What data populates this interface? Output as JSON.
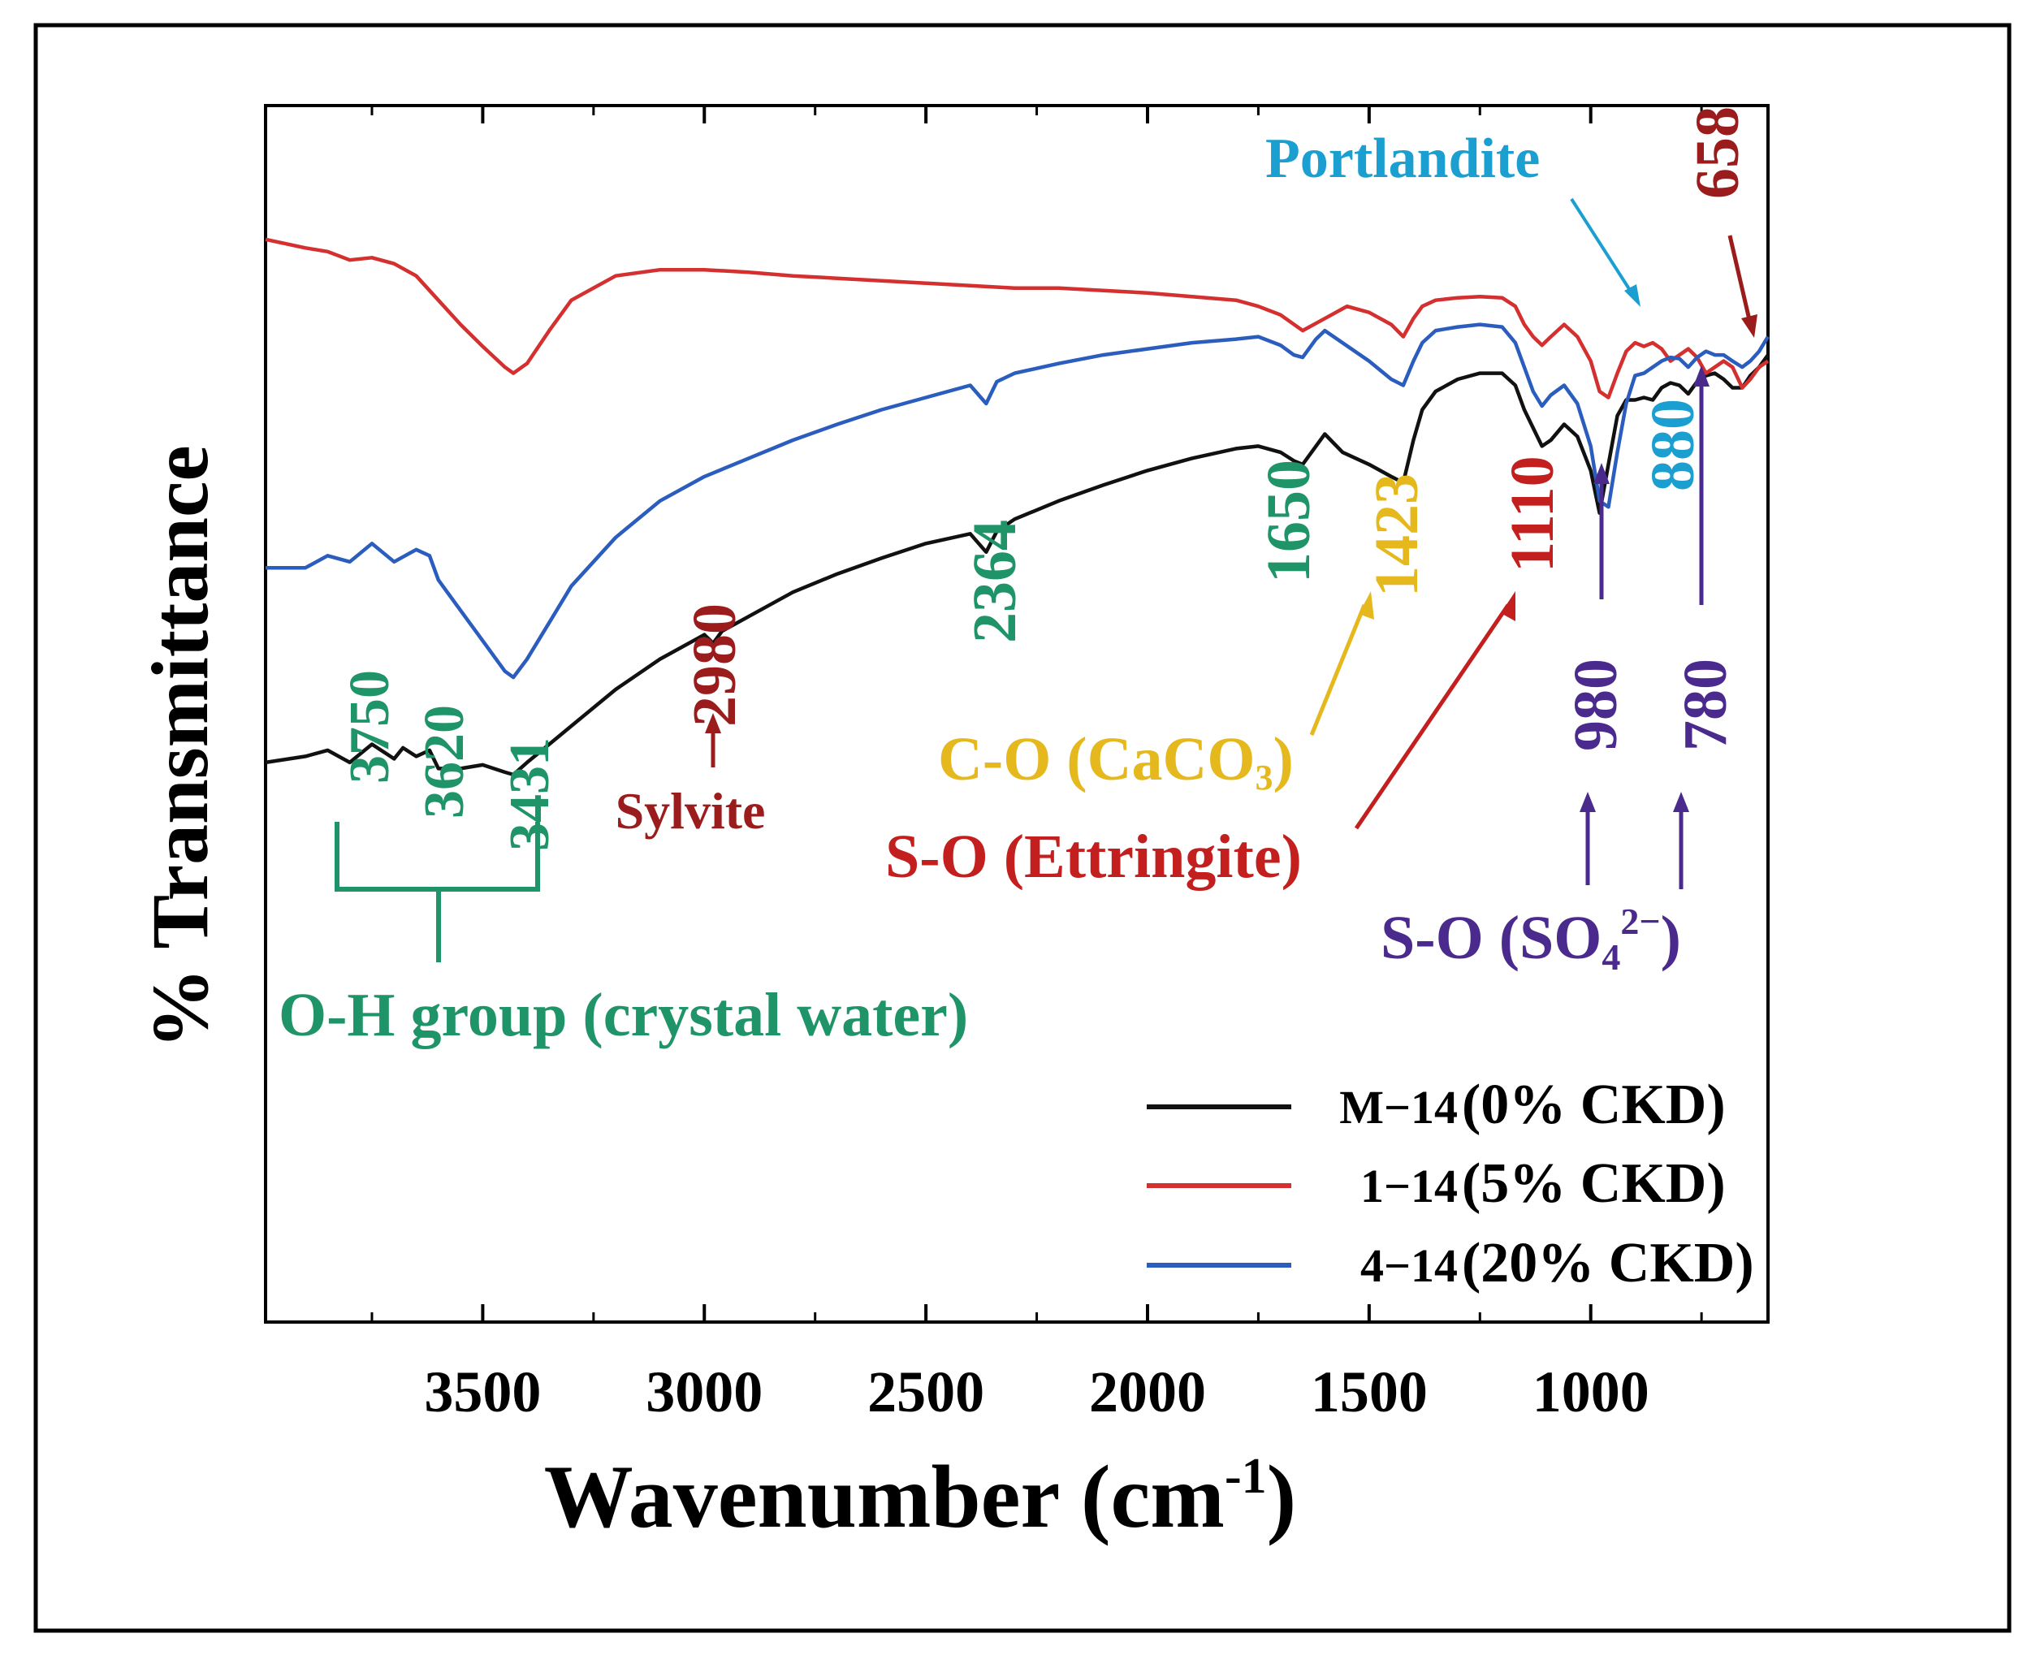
{
  "chart_data": {
    "type": "line",
    "title": "",
    "xlabel": "Wavenumber (cm",
    "xlabel_sup": "-1",
    "xlabel_close": ")",
    "ylabel": "% Transmittance",
    "xlim": [
      3990,
      600
    ],
    "x_reversed": true,
    "xticks": [
      3500,
      3000,
      2500,
      2000,
      1500,
      1000
    ],
    "xtick_labels": [
      "3500",
      "3000",
      "2500",
      "2000",
      "1500",
      "1000"
    ],
    "minor_xticks": [
      3750,
      3250,
      2750,
      2250,
      1750,
      1250,
      750
    ],
    "yticks_shown": false,
    "grid": false,
    "legend_position": "bottom-right",
    "series": [
      {
        "name": "M-14",
        "legend_id": "M−14",
        "legend_note": "(0% CKD)",
        "color": "#111111",
        "x": [
          3990,
          3900,
          3850,
          3800,
          3750,
          3700,
          3680,
          3650,
          3620,
          3600,
          3550,
          3500,
          3450,
          3431,
          3400,
          3350,
          3300,
          3200,
          3100,
          3000,
          2980,
          2960,
          2900,
          2800,
          2700,
          2600,
          2500,
          2400,
          2364,
          2340,
          2300,
          2200,
          2100,
          2000,
          1900,
          1800,
          1750,
          1700,
          1670,
          1650,
          1620,
          1600,
          1560,
          1500,
          1450,
          1423,
          1400,
          1380,
          1350,
          1300,
          1250,
          1200,
          1170,
          1150,
          1130,
          1110,
          1090,
          1060,
          1030,
          1000,
          980,
          960,
          940,
          920,
          900,
          880,
          860,
          840,
          820,
          800,
          780,
          760,
          740,
          720,
          700,
          680,
          658,
          640,
          620,
          600
        ],
        "y": [
          46.0,
          46.5,
          47.0,
          46.0,
          47.5,
          46.3,
          47.2,
          46.5,
          47.0,
          45.5,
          45.5,
          45.8,
          45.2,
          45.0,
          46.0,
          47.5,
          49.0,
          52.0,
          54.5,
          56.5,
          55.8,
          56.8,
          58.0,
          60.0,
          61.5,
          62.8,
          64.0,
          64.8,
          63.3,
          65.0,
          66.0,
          67.5,
          68.8,
          70.0,
          71.0,
          71.8,
          72.0,
          71.5,
          70.8,
          70.5,
          72.0,
          73.0,
          71.5,
          70.5,
          69.5,
          69.0,
          72.5,
          75.0,
          76.5,
          77.5,
          78.0,
          78.0,
          77.0,
          75.0,
          73.5,
          72.0,
          72.5,
          73.8,
          72.8,
          70.0,
          66.5,
          70.5,
          74.5,
          75.8,
          75.8,
          76.0,
          75.8,
          76.8,
          77.2,
          77.0,
          76.3,
          77.3,
          77.8,
          78.0,
          77.5,
          76.8,
          76.8,
          77.8,
          78.5,
          79.5
        ]
      },
      {
        "name": "1-14",
        "legend_id": "1−14",
        "legend_note": "(5% CKD)",
        "color": "#d43030",
        "x": [
          3990,
          3900,
          3850,
          3800,
          3750,
          3700,
          3650,
          3600,
          3550,
          3500,
          3450,
          3431,
          3400,
          3350,
          3300,
          3200,
          3100,
          3000,
          2900,
          2800,
          2700,
          2600,
          2500,
          2400,
          2300,
          2200,
          2100,
          2000,
          1900,
          1800,
          1750,
          1700,
          1650,
          1600,
          1550,
          1500,
          1450,
          1423,
          1400,
          1380,
          1350,
          1300,
          1250,
          1200,
          1170,
          1150,
          1130,
          1110,
          1090,
          1060,
          1030,
          1000,
          980,
          960,
          940,
          920,
          900,
          880,
          860,
          840,
          820,
          800,
          780,
          760,
          740,
          720,
          700,
          680,
          658,
          640,
          620,
          600
        ],
        "y": [
          89.0,
          88.3,
          88.0,
          87.3,
          87.5,
          87.0,
          86.0,
          84.0,
          82.0,
          80.2,
          78.5,
          78.0,
          78.8,
          81.5,
          84.0,
          86.0,
          86.5,
          86.5,
          86.3,
          86.0,
          85.8,
          85.6,
          85.4,
          85.2,
          85.0,
          85.0,
          84.8,
          84.6,
          84.3,
          84.0,
          83.5,
          82.8,
          81.5,
          82.5,
          83.5,
          83.0,
          82.0,
          81.0,
          82.5,
          83.5,
          84.0,
          84.2,
          84.3,
          84.2,
          83.5,
          82.0,
          81.0,
          80.3,
          81.0,
          82.0,
          81.0,
          79.0,
          76.5,
          76.0,
          78.0,
          79.8,
          80.5,
          80.2,
          80.5,
          80.0,
          79.0,
          79.5,
          80.0,
          79.3,
          78.0,
          78.5,
          79.0,
          78.5,
          76.8,
          77.5,
          78.5,
          79.0
        ]
      },
      {
        "name": "4-14",
        "legend_id": "4−14",
        "legend_note": "(20% CKD)",
        "color": "#2a5dbd",
        "x": [
          3990,
          3900,
          3850,
          3800,
          3750,
          3700,
          3650,
          3620,
          3600,
          3550,
          3500,
          3450,
          3431,
          3400,
          3350,
          3300,
          3200,
          3100,
          3000,
          2900,
          2800,
          2700,
          2600,
          2500,
          2400,
          2364,
          2340,
          2300,
          2200,
          2100,
          2000,
          1900,
          1800,
          1750,
          1700,
          1670,
          1650,
          1620,
          1600,
          1560,
          1500,
          1450,
          1423,
          1400,
          1380,
          1350,
          1300,
          1250,
          1200,
          1170,
          1150,
          1130,
          1110,
          1090,
          1060,
          1030,
          1000,
          980,
          960,
          940,
          920,
          900,
          880,
          860,
          840,
          820,
          800,
          780,
          760,
          740,
          720,
          700,
          680,
          658,
          640,
          620,
          600
        ],
        "y": [
          62.0,
          62.0,
          63.0,
          62.5,
          64.0,
          62.5,
          63.5,
          63.0,
          61.0,
          58.5,
          56.0,
          53.5,
          53.0,
          54.5,
          57.5,
          60.5,
          64.5,
          67.5,
          69.5,
          71.0,
          72.5,
          73.8,
          75.0,
          76.0,
          77.0,
          75.5,
          77.3,
          78.0,
          78.8,
          79.5,
          80.0,
          80.5,
          80.8,
          81.0,
          80.3,
          79.5,
          79.3,
          80.8,
          81.5,
          80.5,
          79.0,
          77.5,
          77.0,
          79.0,
          80.5,
          81.5,
          81.8,
          82.0,
          81.8,
          80.5,
          78.5,
          76.5,
          75.3,
          76.2,
          77.0,
          75.5,
          72.0,
          67.5,
          67.0,
          71.5,
          75.5,
          77.8,
          78.0,
          78.5,
          79.0,
          79.3,
          79.2,
          78.5,
          79.3,
          79.8,
          79.5,
          79.5,
          79.0,
          78.5,
          79.0,
          79.8,
          81.0
        ]
      }
    ],
    "annotations": {
      "oh_3750": "3750",
      "oh_3620": "3620",
      "oh_3431": "3431",
      "oh_group": "O-H group (crystal water)",
      "sylvite_value": "2980",
      "sylvite_label": "Sylvite",
      "co2_value": "2364",
      "oh_1650": "1650",
      "caco3_value": "1423",
      "caco3_label": "C-O (CaCO",
      "caco3_sub": "3",
      "caco3_close": ")",
      "ettringite_value": "1110",
      "ettringite_label": "S-O (Ettringite)",
      "so4_980": "980",
      "so4_780": "780",
      "so4_label": "S-O (SO",
      "so4_sub": "4",
      "so4_sup": "2−",
      "so4_close": ")",
      "portlandite_value": "880",
      "portlandite_label": "Portlandite",
      "value_658": "658"
    },
    "annotation_colors": {
      "green": "#1e9468",
      "darkred": "#9b1c1c",
      "red": "#c41f1f",
      "gold": "#e5b91e",
      "purple": "#4b2a8e",
      "cyan": "#1b9fd0"
    }
  }
}
